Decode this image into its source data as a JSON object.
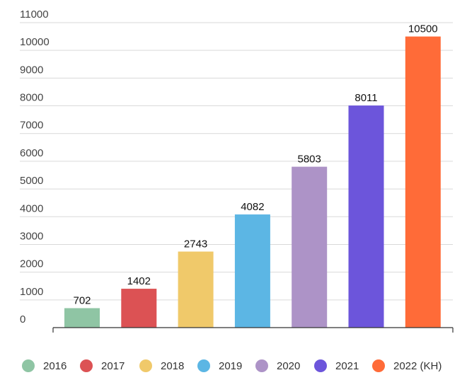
{
  "chart_data": {
    "type": "bar",
    "title": "",
    "xlabel": "",
    "ylabel": "",
    "categories": [
      "2016",
      "2017",
      "2018",
      "2019",
      "2020",
      "2021",
      "2022 (KH)"
    ],
    "values": [
      702,
      1402,
      2743,
      4082,
      5803,
      8011,
      10500
    ],
    "colors": [
      "#8fc5a4",
      "#dc5254",
      "#f0c96a",
      "#5cb6e4",
      "#ad93c7",
      "#6c55db",
      "#ff6b38"
    ],
    "y_ticks": [
      "0",
      "1000",
      "2000",
      "3000",
      "4000",
      "5000",
      "6000",
      "7000",
      "8000",
      "9000",
      "10000",
      "11000"
    ],
    "ylim": [
      0,
      11000
    ],
    "grid": true,
    "legend_position": "bottom"
  }
}
